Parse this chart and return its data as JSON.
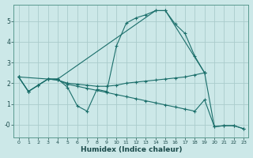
{
  "title": "",
  "xlabel": "Humidex (Indice chaleur)",
  "background_color": "#cce8e8",
  "grid_color": "#aacccc",
  "line_color": "#1a6e6a",
  "xlim": [
    -0.5,
    23.5
  ],
  "ylim": [
    -0.6,
    5.8
  ],
  "xticks": [
    0,
    1,
    2,
    3,
    4,
    5,
    6,
    7,
    8,
    9,
    10,
    11,
    12,
    13,
    14,
    15,
    16,
    17,
    18,
    19,
    20,
    21,
    22,
    23
  ],
  "yticks": [
    0,
    1,
    2,
    3,
    4,
    5
  ],
  "ytick_labels": [
    "-0",
    "1",
    "2",
    "3",
    "4",
    "5"
  ],
  "lines": [
    {
      "x": [
        0,
        1,
        2,
        3,
        4,
        5,
        6,
        7,
        8,
        9,
        10,
        11,
        12,
        13,
        14,
        15,
        16,
        17,
        18,
        19
      ],
      "y": [
        2.3,
        1.6,
        1.9,
        2.2,
        2.2,
        1.8,
        0.9,
        0.65,
        1.7,
        1.6,
        3.8,
        4.9,
        5.15,
        5.3,
        5.5,
        5.5,
        4.85,
        4.4,
        3.3,
        2.5
      ]
    },
    {
      "x": [
        0,
        1,
        2,
        3,
        4,
        5,
        6,
        7,
        8,
        9,
        10,
        11,
        12,
        13,
        14,
        15,
        16,
        17,
        18,
        19
      ],
      "y": [
        2.3,
        1.6,
        1.9,
        2.2,
        2.15,
        2.0,
        1.95,
        1.9,
        1.85,
        1.85,
        1.9,
        2.0,
        2.05,
        2.1,
        2.15,
        2.2,
        2.25,
        2.3,
        2.4,
        2.5
      ]
    },
    {
      "x": [
        0,
        1,
        2,
        3,
        4,
        5,
        6,
        7,
        8,
        9,
        10,
        11,
        12,
        13,
        14,
        15,
        16,
        17,
        18,
        19,
        20,
        21,
        22,
        23
      ],
      "y": [
        2.3,
        1.6,
        1.9,
        2.2,
        2.15,
        1.95,
        1.85,
        1.75,
        1.65,
        1.55,
        1.45,
        1.35,
        1.25,
        1.15,
        1.05,
        0.95,
        0.85,
        0.75,
        0.65,
        1.2,
        -0.1,
        -0.05,
        -0.05,
        -0.2
      ]
    },
    {
      "x": [
        0,
        3,
        4,
        14,
        15,
        19,
        20,
        21,
        22,
        23
      ],
      "y": [
        2.3,
        2.2,
        2.2,
        5.5,
        5.5,
        2.5,
        -0.1,
        -0.05,
        -0.05,
        -0.2
      ]
    }
  ]
}
